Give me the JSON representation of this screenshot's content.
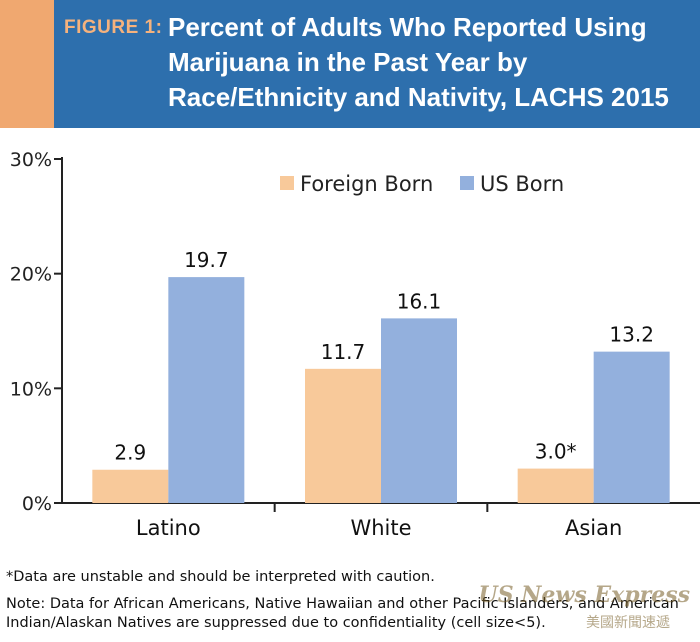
{
  "header": {
    "figure_label": "FIGURE 1:",
    "title": "Percent of Adults Who Reported Using Marijuana in the Past Year by Race/Ethnicity and Nativity, LACHS 2015",
    "bg_color": "#2d6fad",
    "accent_color": "#f0a870"
  },
  "chart_data": {
    "type": "bar",
    "categories": [
      "Latino",
      "White",
      "Asian"
    ],
    "series": [
      {
        "name": "Foreign Born",
        "values": [
          2.9,
          11.7,
          3.0
        ],
        "labels": [
          "2.9",
          "11.7",
          "3.0*"
        ],
        "color": "#f8c99a"
      },
      {
        "name": "US Born",
        "values": [
          19.7,
          16.1,
          13.2
        ],
        "labels": [
          "19.7",
          "16.1",
          "13.2"
        ],
        "color": "#93b0dd"
      }
    ],
    "ylim": [
      0,
      30
    ],
    "yticks": [
      "0%",
      "10%",
      "20%",
      "30%"
    ],
    "ytick_values": [
      0,
      10,
      20,
      30
    ],
    "legend_position": "top-right",
    "grid": false
  },
  "footer": {
    "footnote": "*Data are unstable and should be interpreted with caution.",
    "note": "Note: Data for African Americans, Native Hawaiian and other Pacific Islanders, and American Indian/Alaskan Natives are suppressed due to confidentiality (cell size<5)."
  },
  "watermark": {
    "text": "US News Express",
    "sub": "美國新聞速遞"
  }
}
